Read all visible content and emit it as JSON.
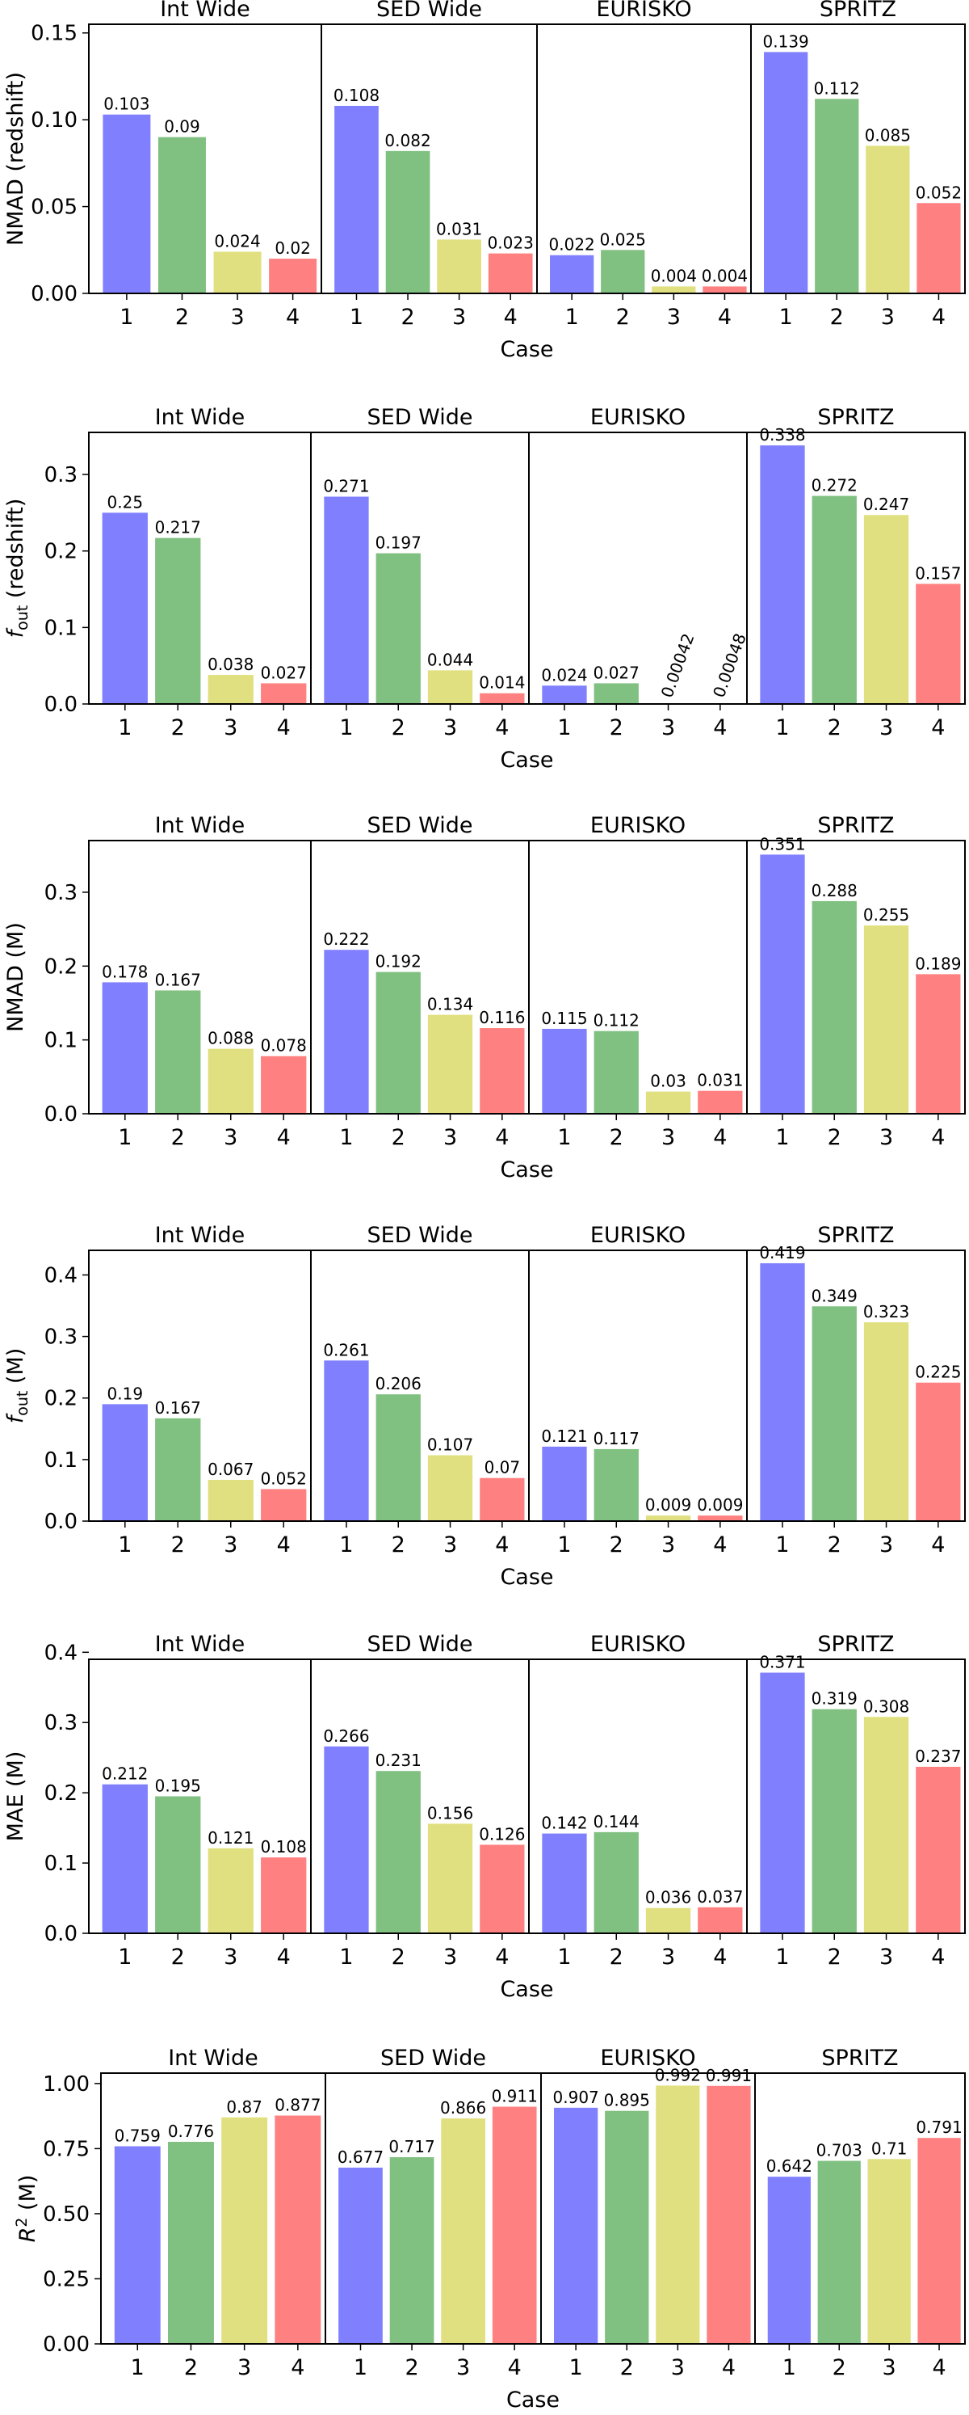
{
  "colors": {
    "case1": "#8080ff",
    "case2": "#80c080",
    "case3": "#e0e080",
    "case4": "#ff8080"
  },
  "chart_data": [
    {
      "type": "bar",
      "ylabel": "NMAD (redshift)",
      "ylabel_html": "NMAD (redshift)",
      "xlabel": "Case",
      "ylim": [
        0,
        0.155
      ],
      "yticks": [
        "0.00",
        "0.05",
        "0.10",
        "0.15"
      ],
      "ytick_values": [
        0,
        0.05,
        0.1,
        0.15
      ],
      "categories": [
        "1",
        "2",
        "3",
        "4"
      ],
      "groups": [
        {
          "name": "Int Wide",
          "values": [
            0.103,
            0.09,
            0.024,
            0.02
          ],
          "labels": [
            "0.103",
            "0.09",
            "0.024",
            "0.02"
          ]
        },
        {
          "name": "SED Wide",
          "values": [
            0.108,
            0.082,
            0.031,
            0.023
          ],
          "labels": [
            "0.108",
            "0.082",
            "0.031",
            "0.023"
          ]
        },
        {
          "name": "EURISKO",
          "values": [
            0.022,
            0.025,
            0.004,
            0.004
          ],
          "labels": [
            "0.022",
            "0.025",
            "0.004",
            "0.004"
          ]
        },
        {
          "name": "SPRITZ",
          "values": [
            0.139,
            0.112,
            0.085,
            0.052
          ],
          "labels": [
            "0.139",
            "0.112",
            "0.085",
            "0.052"
          ]
        }
      ]
    },
    {
      "type": "bar",
      "ylabel": "f_out (redshift)",
      "ylabel_main": "f",
      "ylabel_sub": "out",
      "ylabel_rest": " (redshift)",
      "xlabel": "Case",
      "ylim": [
        0,
        0.355
      ],
      "yticks": [
        "0.0",
        "0.1",
        "0.2",
        "0.3"
      ],
      "ytick_values": [
        0,
        0.1,
        0.2,
        0.3
      ],
      "categories": [
        "1",
        "2",
        "3",
        "4"
      ],
      "groups": [
        {
          "name": "Int Wide",
          "values": [
            0.25,
            0.217,
            0.038,
            0.027
          ],
          "labels": [
            "0.25",
            "0.217",
            "0.038",
            "0.027"
          ]
        },
        {
          "name": "SED Wide",
          "values": [
            0.271,
            0.197,
            0.044,
            0.014
          ],
          "labels": [
            "0.271",
            "0.197",
            "0.044",
            "0.014"
          ]
        },
        {
          "name": "EURISKO",
          "values": [
            0.024,
            0.027,
            0.00042,
            0.00048
          ],
          "labels": [
            "0.024",
            "0.027",
            "0.00042",
            "0.00048"
          ],
          "rotated": [
            false,
            false,
            true,
            true
          ]
        },
        {
          "name": "SPRITZ",
          "values": [
            0.338,
            0.272,
            0.247,
            0.157
          ],
          "labels": [
            "0.338",
            "0.272",
            "0.247",
            "0.157"
          ]
        }
      ]
    },
    {
      "type": "bar",
      "ylabel": "NMAD (M)",
      "xlabel": "Case",
      "ylim": [
        0,
        0.37
      ],
      "yticks": [
        "0.0",
        "0.1",
        "0.2",
        "0.3"
      ],
      "ytick_values": [
        0,
        0.1,
        0.2,
        0.3
      ],
      "categories": [
        "1",
        "2",
        "3",
        "4"
      ],
      "groups": [
        {
          "name": "Int Wide",
          "values": [
            0.178,
            0.167,
            0.088,
            0.078
          ],
          "labels": [
            "0.178",
            "0.167",
            "0.088",
            "0.078"
          ]
        },
        {
          "name": "SED Wide",
          "values": [
            0.222,
            0.192,
            0.134,
            0.116
          ],
          "labels": [
            "0.222",
            "0.192",
            "0.134",
            "0.116"
          ]
        },
        {
          "name": "EURISKO",
          "values": [
            0.115,
            0.112,
            0.03,
            0.031
          ],
          "labels": [
            "0.115",
            "0.112",
            "0.03",
            "0.031"
          ]
        },
        {
          "name": "SPRITZ",
          "values": [
            0.351,
            0.288,
            0.255,
            0.189
          ],
          "labels": [
            "0.351",
            "0.288",
            "0.255",
            "0.189"
          ]
        }
      ]
    },
    {
      "type": "bar",
      "ylabel": "f_out (M)",
      "ylabel_main": "f",
      "ylabel_sub": "out",
      "ylabel_rest": " (M)",
      "xlabel": "Case",
      "ylim": [
        0,
        0.44
      ],
      "yticks": [
        "0.0",
        "0.1",
        "0.2",
        "0.3",
        "0.4"
      ],
      "ytick_values": [
        0,
        0.1,
        0.2,
        0.3,
        0.4
      ],
      "categories": [
        "1",
        "2",
        "3",
        "4"
      ],
      "groups": [
        {
          "name": "Int Wide",
          "values": [
            0.19,
            0.167,
            0.067,
            0.052
          ],
          "labels": [
            "0.19",
            "0.167",
            "0.067",
            "0.052"
          ]
        },
        {
          "name": "SED Wide",
          "values": [
            0.261,
            0.206,
            0.107,
            0.07
          ],
          "labels": [
            "0.261",
            "0.206",
            "0.107",
            "0.07"
          ]
        },
        {
          "name": "EURISKO",
          "values": [
            0.121,
            0.117,
            0.009,
            0.009
          ],
          "labels": [
            "0.121",
            "0.117",
            "0.009",
            "0.009"
          ]
        },
        {
          "name": "SPRITZ",
          "values": [
            0.419,
            0.349,
            0.323,
            0.225
          ],
          "labels": [
            "0.419",
            "0.349",
            "0.323",
            "0.225"
          ]
        }
      ]
    },
    {
      "type": "bar",
      "ylabel": "MAE (M)",
      "xlabel": "Case",
      "ylim": [
        0,
        0.39
      ],
      "yticks": [
        "0.0",
        "0.1",
        "0.2",
        "0.3",
        "0.4"
      ],
      "ytick_values": [
        0,
        0.1,
        0.2,
        0.3,
        0.4
      ],
      "categories": [
        "1",
        "2",
        "3",
        "4"
      ],
      "groups": [
        {
          "name": "Int Wide",
          "values": [
            0.212,
            0.195,
            0.121,
            0.108
          ],
          "labels": [
            "0.212",
            "0.195",
            "0.121",
            "0.108"
          ]
        },
        {
          "name": "SED Wide",
          "values": [
            0.266,
            0.231,
            0.156,
            0.126
          ],
          "labels": [
            "0.266",
            "0.231",
            "0.156",
            "0.126"
          ]
        },
        {
          "name": "EURISKO",
          "values": [
            0.142,
            0.144,
            0.036,
            0.037
          ],
          "labels": [
            "0.142",
            "0.144",
            "0.036",
            "0.037"
          ]
        },
        {
          "name": "SPRITZ",
          "values": [
            0.371,
            0.319,
            0.308,
            0.237
          ],
          "labels": [
            "0.371",
            "0.319",
            "0.308",
            "0.237"
          ]
        }
      ]
    },
    {
      "type": "bar",
      "ylabel": "R^2 (M)",
      "ylabel_main": "R",
      "ylabel_sup": "2",
      "ylabel_rest": " (M)",
      "xlabel": "Case",
      "ylim": [
        0,
        1.04
      ],
      "yticks": [
        "0.00",
        "0.25",
        "0.50",
        "0.75",
        "1.00"
      ],
      "ytick_values": [
        0,
        0.25,
        0.5,
        0.75,
        1.0
      ],
      "categories": [
        "1",
        "2",
        "3",
        "4"
      ],
      "groups": [
        {
          "name": "Int Wide",
          "values": [
            0.759,
            0.776,
            0.87,
            0.877
          ],
          "labels": [
            "0.759",
            "0.776",
            "0.87",
            "0.877"
          ]
        },
        {
          "name": "SED Wide",
          "values": [
            0.677,
            0.717,
            0.866,
            0.911
          ],
          "labels": [
            "0.677",
            "0.717",
            "0.866",
            "0.911"
          ]
        },
        {
          "name": "EURISKO",
          "values": [
            0.907,
            0.895,
            0.992,
            0.991
          ],
          "labels": [
            "0.907",
            "0.895",
            "0.992",
            "0.991"
          ]
        },
        {
          "name": "SPRITZ",
          "values": [
            0.642,
            0.703,
            0.71,
            0.791
          ],
          "labels": [
            "0.642",
            "0.703",
            "0.71",
            "0.791"
          ]
        }
      ]
    }
  ]
}
